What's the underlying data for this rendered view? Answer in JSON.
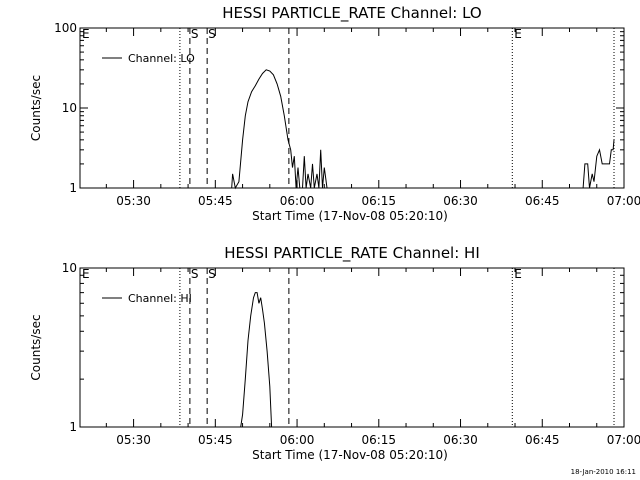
{
  "footer": {
    "timestamp": "18-Jan-2010 16:11"
  },
  "chart_data": [
    {
      "type": "line",
      "title": "HESSI PARTICLE_RATE Channel: LO",
      "xlabel": "Start Time (17-Nov-08 05:20:10)",
      "ylabel": "Counts/sec",
      "yscale": "log",
      "ylim": [
        1,
        100
      ],
      "xlim": [
        "05:20:10",
        "07:00"
      ],
      "x_tick_labels": [
        "05:30",
        "05:45",
        "06:00",
        "06:15",
        "06:30",
        "06:45",
        "07:00"
      ],
      "y_tick_labels": [
        "1",
        "10",
        "100"
      ],
      "legend": {
        "label": "Channel: LO",
        "position": "top-left"
      },
      "markers": [
        {
          "label": "E",
          "time": "05:20:10",
          "style": "dotted"
        },
        {
          "label": "",
          "time": "05:38:30",
          "style": "dotted"
        },
        {
          "label": "S",
          "time": "05:40:20",
          "style": "dashed"
        },
        {
          "label": "S",
          "time": "05:43:30",
          "style": "dashed"
        },
        {
          "label": "",
          "time": "05:58:30",
          "style": "dashed"
        },
        {
          "label": "E",
          "time": "06:39:30",
          "style": "dotted"
        },
        {
          "label": "",
          "time": "06:58:10",
          "style": "dotted"
        }
      ],
      "series": [
        {
          "points": [
            [
              "05:48:00",
              1
            ],
            [
              "05:48:10",
              1.5
            ],
            [
              "05:48:40",
              1
            ],
            [
              "05:49:20",
              1.2
            ],
            [
              "05:50:00",
              4
            ],
            [
              "05:50:30",
              8
            ],
            [
              "05:51:00",
              12
            ],
            [
              "05:51:40",
              16
            ],
            [
              "05:52:20",
              19
            ],
            [
              "05:53:00",
              23
            ],
            [
              "05:53:40",
              27
            ],
            [
              "05:54:20",
              30
            ],
            [
              "05:55:00",
              29
            ],
            [
              "05:55:40",
              26
            ],
            [
              "05:56:20",
              20
            ],
            [
              "05:57:00",
              14
            ],
            [
              "05:57:40",
              8
            ],
            [
              "05:58:20",
              4
            ],
            [
              "05:58:50",
              3
            ],
            [
              "05:59:10",
              1.8
            ],
            [
              "05:59:30",
              2.5
            ],
            [
              "05:59:50",
              1
            ],
            [
              "06:00:10",
              1.8
            ],
            [
              "06:00:30",
              1
            ],
            [
              "06:01:00",
              1
            ],
            [
              "06:01:20",
              2.5
            ],
            [
              "06:01:40",
              1
            ],
            [
              "06:02:00",
              1.5
            ],
            [
              "06:02:30",
              1
            ],
            [
              "06:02:50",
              2
            ],
            [
              "06:03:10",
              1
            ],
            [
              "06:03:40",
              1.5
            ],
            [
              "06:04:00",
              1
            ],
            [
              "06:04:20",
              3
            ],
            [
              "06:04:40",
              1
            ],
            [
              "06:05:00",
              1.8
            ],
            [
              "06:05:30",
              1
            ],
            [
              "06:52:30",
              1
            ],
            [
              "06:52:50",
              2
            ],
            [
              "06:53:20",
              2
            ],
            [
              "06:53:40",
              1
            ],
            [
              "06:54:10",
              1.5
            ],
            [
              "06:54:30",
              1.2
            ],
            [
              "06:55:00",
              2.5
            ],
            [
              "06:55:30",
              3
            ],
            [
              "06:56:00",
              2
            ],
            [
              "06:56:40",
              2
            ],
            [
              "06:57:20",
              2
            ],
            [
              "06:57:40",
              3
            ],
            [
              "06:58:00",
              3
            ],
            [
              "06:58:10",
              4
            ]
          ]
        }
      ]
    },
    {
      "type": "line",
      "title": "HESSI PARTICLE_RATE Channel: HI",
      "xlabel": "Start Time (17-Nov-08 05:20:10)",
      "ylabel": "Counts/sec",
      "yscale": "log",
      "ylim": [
        1,
        10
      ],
      "xlim": [
        "05:20:10",
        "07:00"
      ],
      "x_tick_labels": [
        "05:30",
        "05:45",
        "06:00",
        "06:15",
        "06:30",
        "06:45",
        "07:00"
      ],
      "y_tick_labels": [
        "1",
        "10"
      ],
      "legend": {
        "label": "Channel: HI",
        "position": "top-left"
      },
      "markers": [
        {
          "label": "E",
          "time": "05:20:10",
          "style": "dotted"
        },
        {
          "label": "",
          "time": "05:38:30",
          "style": "dotted"
        },
        {
          "label": "S",
          "time": "05:40:20",
          "style": "dashed"
        },
        {
          "label": "S",
          "time": "05:43:30",
          "style": "dashed"
        },
        {
          "label": "",
          "time": "05:58:30",
          "style": "dashed"
        },
        {
          "label": "E",
          "time": "06:39:30",
          "style": "dotted"
        },
        {
          "label": "",
          "time": "06:58:10",
          "style": "dotted"
        }
      ],
      "series": [
        {
          "points": [
            [
              "05:49:40",
              1
            ],
            [
              "05:50:00",
              1.2
            ],
            [
              "05:50:30",
              2
            ],
            [
              "05:51:00",
              3.5
            ],
            [
              "05:51:30",
              5
            ],
            [
              "05:52:00",
              6.5
            ],
            [
              "05:52:20",
              7
            ],
            [
              "05:52:40",
              7
            ],
            [
              "05:53:00",
              6
            ],
            [
              "05:53:20",
              6.5
            ],
            [
              "05:53:40",
              5.5
            ],
            [
              "05:54:00",
              4.5
            ],
            [
              "05:54:30",
              3
            ],
            [
              "05:55:00",
              1.8
            ],
            [
              "05:55:20",
              1
            ]
          ]
        }
      ]
    }
  ]
}
